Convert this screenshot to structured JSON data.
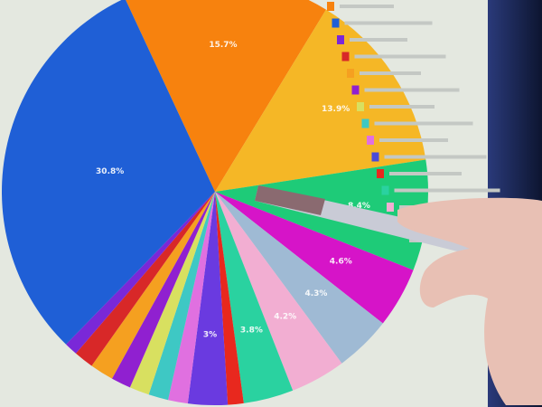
{
  "chart_data": {
    "type": "pie",
    "slices": [
      {
        "value": 15.7,
        "label": "15.7%",
        "color": "#f7820e"
      },
      {
        "value": 13.9,
        "label": "13.9%",
        "color": "#f5b726"
      },
      {
        "value": 8.4,
        "label": "8.4%",
        "color": "#1ecb78"
      },
      {
        "value": 4.6,
        "label": "4.6%",
        "color": "#d614c8"
      },
      {
        "value": 4.3,
        "label": "4.3%",
        "color": "#9fbad4"
      },
      {
        "value": 4.2,
        "label": "4.2%",
        "color": "#f2aed2"
      },
      {
        "value": 3.8,
        "label": "3.8%",
        "color": "#2ad2a0"
      },
      {
        "value": 1.2,
        "label": "",
        "color": "#e8281e"
      },
      {
        "value": 3.0,
        "label": "3%",
        "color": "#6a3ae0"
      },
      {
        "value": 1.5,
        "label": "",
        "color": "#e070e0"
      },
      {
        "value": 1.5,
        "label": "",
        "color": "#3ec8c4"
      },
      {
        "value": 1.5,
        "label": "",
        "color": "#d8e060"
      },
      {
        "value": 1.5,
        "label": "",
        "color": "#9020d0"
      },
      {
        "value": 1.8,
        "label": "",
        "color": "#f5a020"
      },
      {
        "value": 1.5,
        "label": "",
        "color": "#d82828"
      },
      {
        "value": 1.0,
        "label": "",
        "color": "#7a28d8"
      },
      {
        "value": 30.8,
        "label": "30.8%",
        "color": "#1f5fd6"
      }
    ],
    "legend_placement": "right",
    "legend_colors": [
      "#f7820e",
      "#1f5fd6",
      "#7a28d8",
      "#d82828",
      "#f5a020",
      "#9020d0",
      "#d8e060",
      "#3ec8c4",
      "#e070e0",
      "#4a4ad8",
      "#e8281e",
      "#2ad2a0",
      "#f2aed2",
      "#d614c8",
      "#1ecb78"
    ]
  }
}
